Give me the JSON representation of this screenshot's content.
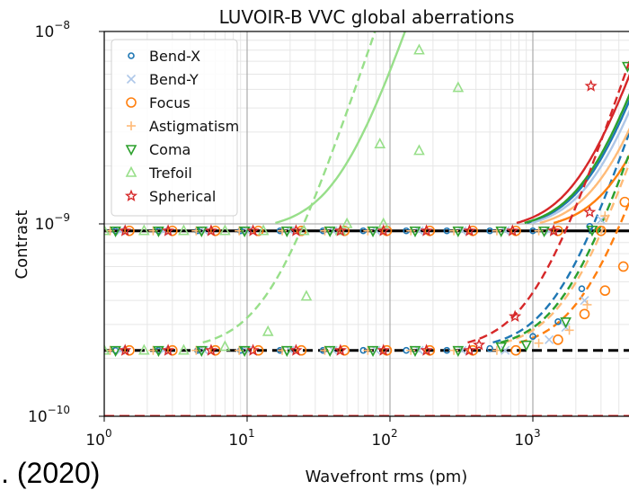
{
  "caption": "l. (2020)",
  "chart_data": {
    "type": "line",
    "title": "LUVOIR-B VVC global aberrations",
    "xlabel": "Wavefront rms (pm)",
    "ylabel": "Contrast",
    "xscale": "log",
    "yscale": "log",
    "xlim": [
      1,
      5000
    ],
    "ylim": [
      1e-10,
      1e-08
    ],
    "x_ticks": [
      {
        "exp": "0"
      },
      {
        "exp": "1"
      },
      {
        "exp": "2"
      },
      {
        "exp": "3"
      }
    ],
    "y_ticks": [
      {
        "exp": "−10"
      },
      {
        "exp": "−9"
      },
      {
        "exp": "−8"
      }
    ],
    "tick_base": "10",
    "grid": true,
    "legend_position": "top-left",
    "hlines": [
      {
        "y": 9.2e-10,
        "color": "#000000",
        "style": "solid"
      },
      {
        "y": 2.2e-10,
        "color": "#000000",
        "style": "dashed"
      },
      {
        "y": 1e-10,
        "color": "#d62728",
        "style": "dashed"
      }
    ],
    "series": [
      {
        "name": "Bend-X",
        "color": "#1f77b4",
        "marker": "circle-small",
        "x_knee_solid": 2600,
        "x_knee_dashed": 1500,
        "points_solid": [
          [
            1.2,
            9.2e-10
          ],
          [
            2.4,
            9.2e-10
          ],
          [
            4.5,
            9.2e-10
          ],
          [
            9,
            9.2e-10
          ],
          [
            17,
            9.2e-10
          ],
          [
            34,
            9.2e-10
          ],
          [
            65,
            9.2e-10
          ],
          [
            130,
            9.2e-10
          ],
          [
            250,
            9.2e-10
          ],
          [
            500,
            9.2e-10
          ],
          [
            1000,
            9.2e-10
          ],
          [
            2500,
            9.7e-10
          ]
        ],
        "points_dashed": [
          [
            1.2,
            2.2e-10
          ],
          [
            2.4,
            2.2e-10
          ],
          [
            4.5,
            2.2e-10
          ],
          [
            9,
            2.2e-10
          ],
          [
            17,
            2.2e-10
          ],
          [
            34,
            2.2e-10
          ],
          [
            65,
            2.2e-10
          ],
          [
            130,
            2.2e-10
          ],
          [
            250,
            2.2e-10
          ],
          [
            500,
            2.25e-10
          ],
          [
            1000,
            2.6e-10
          ],
          [
            1500,
            3.1e-10
          ],
          [
            2200,
            4.6e-10
          ]
        ]
      },
      {
        "name": "Bend-Y",
        "color": "#aec7e8",
        "marker": "x",
        "x_knee_solid": 2800,
        "x_knee_dashed": 1700,
        "points_solid": [
          [
            1.3,
            9.2e-10
          ],
          [
            2.6,
            9.2e-10
          ],
          [
            5,
            9.2e-10
          ],
          [
            10,
            9.2e-10
          ],
          [
            20,
            9.2e-10
          ],
          [
            40,
            9.2e-10
          ],
          [
            80,
            9.2e-10
          ],
          [
            160,
            9.2e-10
          ],
          [
            320,
            9.2e-10
          ],
          [
            640,
            9.2e-10
          ],
          [
            1300,
            9.2e-10
          ],
          [
            3000,
            1.05e-09
          ]
        ],
        "points_dashed": [
          [
            1.3,
            2.2e-10
          ],
          [
            2.6,
            2.2e-10
          ],
          [
            5,
            2.2e-10
          ],
          [
            10,
            2.2e-10
          ],
          [
            20,
            2.2e-10
          ],
          [
            40,
            2.2e-10
          ],
          [
            80,
            2.2e-10
          ],
          [
            160,
            2.2e-10
          ],
          [
            320,
            2.2e-10
          ],
          [
            640,
            2.2e-10
          ],
          [
            1300,
            2.5e-10
          ],
          [
            1700,
            2.9e-10
          ],
          [
            2300,
            4e-10
          ]
        ]
      },
      {
        "name": "Focus",
        "color": "#ff7f0e",
        "marker": "circle",
        "x_knee_solid": 4000,
        "x_knee_dashed": 2300,
        "points_solid": [
          [
            1.5,
            9.2e-10
          ],
          [
            3,
            9.2e-10
          ],
          [
            6,
            9.2e-10
          ],
          [
            12,
            9.2e-10
          ],
          [
            24,
            9.2e-10
          ],
          [
            48,
            9.2e-10
          ],
          [
            95,
            9.2e-10
          ],
          [
            190,
            9.2e-10
          ],
          [
            380,
            9.2e-10
          ],
          [
            760,
            9.2e-10
          ],
          [
            1500,
            9.2e-10
          ],
          [
            3000,
            9.2e-10
          ],
          [
            4400,
            1.3e-09
          ]
        ],
        "points_dashed": [
          [
            1.5,
            2.2e-10
          ],
          [
            3,
            2.2e-10
          ],
          [
            6,
            2.2e-10
          ],
          [
            12,
            2.2e-10
          ],
          [
            24,
            2.2e-10
          ],
          [
            48,
            2.2e-10
          ],
          [
            95,
            2.2e-10
          ],
          [
            190,
            2.2e-10
          ],
          [
            380,
            2.2e-10
          ],
          [
            760,
            2.2e-10
          ],
          [
            1500,
            2.5e-10
          ],
          [
            2300,
            3.4e-10
          ],
          [
            3200,
            4.5e-10
          ],
          [
            4300,
            6e-10
          ]
        ]
      },
      {
        "name": "Astigmatism",
        "color": "#ffbb78",
        "marker": "plus",
        "x_knee_solid": 3200,
        "x_knee_dashed": 1800,
        "points_solid": [
          [
            1.1,
            9.2e-10
          ],
          [
            2.2,
            9.2e-10
          ],
          [
            4.4,
            9.2e-10
          ],
          [
            8.8,
            9.2e-10
          ],
          [
            17.6,
            9.2e-10
          ],
          [
            35,
            9.2e-10
          ],
          [
            70,
            9.2e-10
          ],
          [
            140,
            9.2e-10
          ],
          [
            280,
            9.2e-10
          ],
          [
            560,
            9.2e-10
          ],
          [
            1100,
            9.2e-10
          ],
          [
            3200,
            1.1e-09
          ]
        ],
        "points_dashed": [
          [
            1.1,
            2.2e-10
          ],
          [
            2.2,
            2.2e-10
          ],
          [
            4.4,
            2.2e-10
          ],
          [
            8.8,
            2.2e-10
          ],
          [
            17.6,
            2.2e-10
          ],
          [
            35,
            2.2e-10
          ],
          [
            70,
            2.2e-10
          ],
          [
            140,
            2.2e-10
          ],
          [
            280,
            2.2e-10
          ],
          [
            560,
            2.2e-10
          ],
          [
            1100,
            2.4e-10
          ],
          [
            1800,
            2.8e-10
          ],
          [
            2400,
            3.8e-10
          ]
        ]
      },
      {
        "name": "Coma",
        "color": "#2ca02c",
        "marker": "triangle-down",
        "x_knee_solid": 2500,
        "x_knee_dashed": 1700,
        "points_solid": [
          [
            1.2,
            9.2e-10
          ],
          [
            2.4,
            9.2e-10
          ],
          [
            4.8,
            9.2e-10
          ],
          [
            9.6,
            9.2e-10
          ],
          [
            19,
            9.2e-10
          ],
          [
            38,
            9.2e-10
          ],
          [
            76,
            9.2e-10
          ],
          [
            150,
            9.2e-10
          ],
          [
            300,
            9.2e-10
          ],
          [
            600,
            9.2e-10
          ],
          [
            1200,
            9.2e-10
          ],
          [
            2600,
            9.3e-10
          ]
        ],
        "points_dashed": [
          [
            1.2,
            2.2e-10
          ],
          [
            2.4,
            2.2e-10
          ],
          [
            4.8,
            2.2e-10
          ],
          [
            9.6,
            2.2e-10
          ],
          [
            19,
            2.2e-10
          ],
          [
            38,
            2.2e-10
          ],
          [
            76,
            2.2e-10
          ],
          [
            150,
            2.2e-10
          ],
          [
            300,
            2.2e-10
          ],
          [
            600,
            2.3e-10
          ],
          [
            900,
            2.35e-10
          ],
          [
            1700,
            3.1e-10
          ],
          [
            2600,
            9.3e-10
          ],
          [
            4600,
            6.6e-09
          ]
        ]
      },
      {
        "name": "Trefoil",
        "color": "#98df8a",
        "marker": "triangle-up",
        "x_knee_solid": 45,
        "x_knee_dashed": 14,
        "points_solid": [
          [
            1,
            9.2e-10
          ],
          [
            1.9,
            9.2e-10
          ],
          [
            3.6,
            9.2e-10
          ],
          [
            7,
            9.2e-10
          ],
          [
            13,
            9.2e-10
          ],
          [
            25,
            9.2e-10
          ],
          [
            45,
            9.2e-10
          ],
          [
            90,
            1e-09
          ],
          [
            160,
            2.4e-09
          ],
          [
            300,
            5.1e-09
          ]
        ],
        "points_dashed": [
          [
            1,
            2.2e-10
          ],
          [
            1.9,
            2.2e-10
          ],
          [
            3.6,
            2.2e-10
          ],
          [
            7,
            2.3e-10
          ],
          [
            14,
            2.75e-10
          ],
          [
            26,
            4.2e-10
          ],
          [
            50,
            1e-09
          ],
          [
            85,
            2.6e-09
          ],
          [
            160,
            8e-09
          ]
        ]
      },
      {
        "name": "Spherical",
        "color": "#d62728",
        "marker": "star",
        "x_knee_solid": 2200,
        "x_knee_dashed": 1000,
        "points_solid": [
          [
            1.4,
            9.2e-10
          ],
          [
            2.8,
            9.2e-10
          ],
          [
            5.6,
            9.2e-10
          ],
          [
            11,
            9.2e-10
          ],
          [
            22,
            9.2e-10
          ],
          [
            45,
            9.2e-10
          ],
          [
            90,
            9.2e-10
          ],
          [
            180,
            9.2e-10
          ],
          [
            360,
            9.2e-10
          ],
          [
            720,
            9.2e-10
          ],
          [
            1400,
            9.2e-10
          ],
          [
            2500,
            1.15e-09
          ]
        ],
        "points_dashed": [
          [
            1.4,
            2.2e-10
          ],
          [
            2.8,
            2.2e-10
          ],
          [
            5.6,
            2.2e-10
          ],
          [
            11,
            2.2e-10
          ],
          [
            22,
            2.2e-10
          ],
          [
            45,
            2.2e-10
          ],
          [
            90,
            2.2e-10
          ],
          [
            180,
            2.2e-10
          ],
          [
            360,
            2.2e-10
          ],
          [
            420,
            2.35e-10
          ],
          [
            750,
            3.3e-10
          ],
          [
            1400,
            9.2e-10
          ],
          [
            2550,
            5.2e-09
          ]
        ]
      }
    ]
  }
}
